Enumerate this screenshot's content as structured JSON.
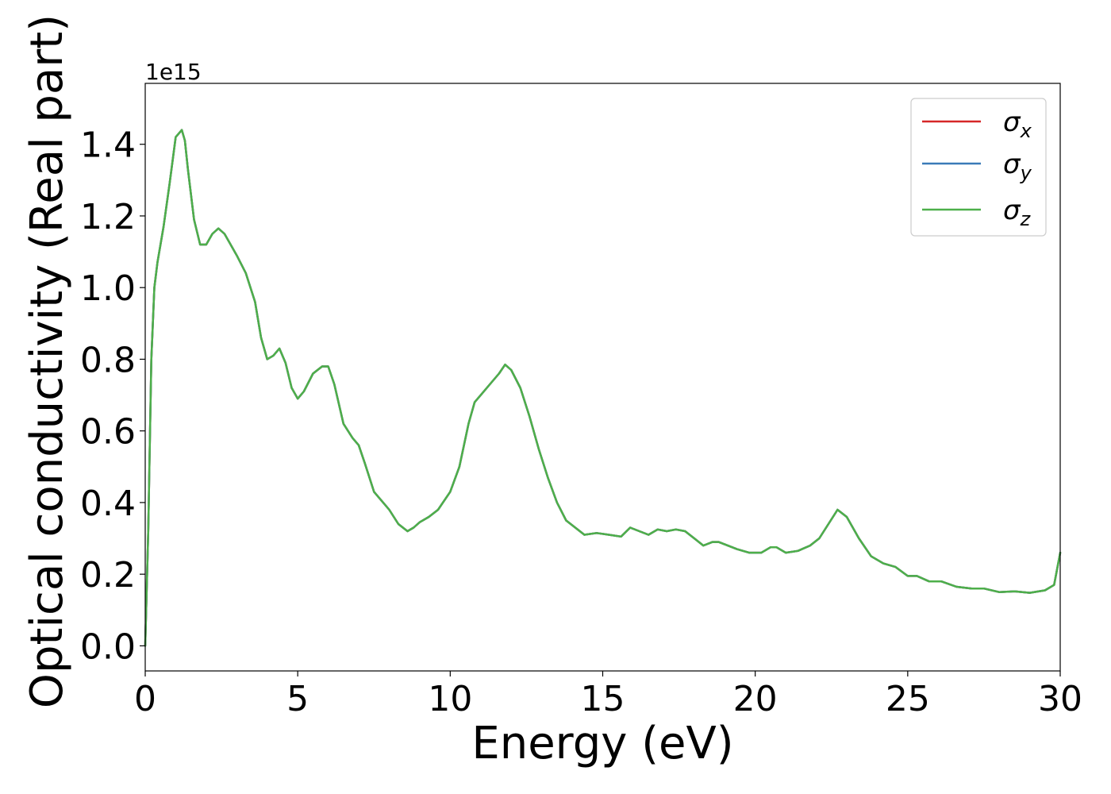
{
  "chart_data": {
    "type": "line",
    "xlabel": "Energy (eV)",
    "ylabel": "Optical conductivity (Real part)",
    "y_offset_text": "1e15",
    "y_scale_factor": 1000000000000000.0,
    "xlim": [
      0,
      30
    ],
    "ylim": [
      -0.07,
      1.57
    ],
    "x_ticks": [
      0,
      5,
      10,
      15,
      20,
      25,
      30
    ],
    "x_tick_labels": [
      "0",
      "5",
      "10",
      "15",
      "20",
      "25",
      "30"
    ],
    "y_ticks": [
      0.0,
      0.2,
      0.4,
      0.6,
      0.8,
      1.0,
      1.2,
      1.4
    ],
    "y_tick_labels": [
      "0.0",
      "0.2",
      "0.4",
      "0.6",
      "0.8",
      "1.0",
      "1.2",
      "1.4"
    ],
    "grid": false,
    "legend_position": "top-right",
    "series": [
      {
        "name": "σ",
        "subscript": "x",
        "color": "#d62728"
      },
      {
        "name": "σ",
        "subscript": "y",
        "color": "#3a7bb8"
      },
      {
        "name": "σ",
        "subscript": "z",
        "color": "#4daf4a"
      }
    ],
    "x": [
      0.0,
      0.1,
      0.2,
      0.3,
      0.4,
      0.6,
      0.8,
      1.0,
      1.2,
      1.3,
      1.4,
      1.6,
      1.8,
      2.0,
      2.2,
      2.4,
      2.6,
      2.8,
      3.0,
      3.3,
      3.6,
      3.8,
      4.0,
      4.2,
      4.4,
      4.6,
      4.8,
      5.0,
      5.2,
      5.5,
      5.8,
      6.0,
      6.2,
      6.5,
      6.8,
      7.0,
      7.2,
      7.5,
      7.8,
      8.0,
      8.3,
      8.6,
      8.8,
      9.0,
      9.3,
      9.6,
      10.0,
      10.3,
      10.6,
      10.8,
      11.0,
      11.3,
      11.6,
      11.8,
      12.0,
      12.3,
      12.6,
      12.9,
      13.2,
      13.5,
      13.8,
      14.1,
      14.4,
      14.8,
      15.2,
      15.6,
      15.9,
      16.2,
      16.5,
      16.8,
      17.1,
      17.4,
      17.7,
      18.0,
      18.3,
      18.6,
      18.8,
      19.1,
      19.4,
      19.8,
      20.2,
      20.5,
      20.7,
      21.0,
      21.4,
      21.8,
      22.1,
      22.4,
      22.7,
      23.0,
      23.4,
      23.8,
      24.2,
      24.6,
      25.0,
      25.3,
      25.7,
      26.1,
      26.6,
      27.1,
      27.5,
      28.0,
      28.5,
      29.0,
      29.5,
      29.8,
      30.0
    ],
    "values": [
      0.0,
      0.32,
      0.8,
      1.0,
      1.07,
      1.17,
      1.29,
      1.42,
      1.44,
      1.41,
      1.33,
      1.19,
      1.12,
      1.12,
      1.15,
      1.165,
      1.15,
      1.12,
      1.09,
      1.04,
      0.96,
      0.86,
      0.8,
      0.81,
      0.83,
      0.79,
      0.72,
      0.69,
      0.71,
      0.76,
      0.78,
      0.78,
      0.73,
      0.62,
      0.58,
      0.56,
      0.51,
      0.43,
      0.4,
      0.38,
      0.34,
      0.32,
      0.33,
      0.345,
      0.36,
      0.38,
      0.43,
      0.5,
      0.62,
      0.68,
      0.7,
      0.73,
      0.76,
      0.785,
      0.77,
      0.72,
      0.64,
      0.55,
      0.47,
      0.4,
      0.35,
      0.33,
      0.31,
      0.315,
      0.31,
      0.305,
      0.33,
      0.32,
      0.31,
      0.325,
      0.32,
      0.325,
      0.32,
      0.3,
      0.28,
      0.29,
      0.29,
      0.28,
      0.27,
      0.26,
      0.26,
      0.275,
      0.275,
      0.26,
      0.265,
      0.28,
      0.3,
      0.34,
      0.38,
      0.36,
      0.3,
      0.25,
      0.23,
      0.22,
      0.195,
      0.195,
      0.18,
      0.18,
      0.165,
      0.16,
      0.16,
      0.15,
      0.152,
      0.148,
      0.155,
      0.17,
      0.26
    ]
  }
}
